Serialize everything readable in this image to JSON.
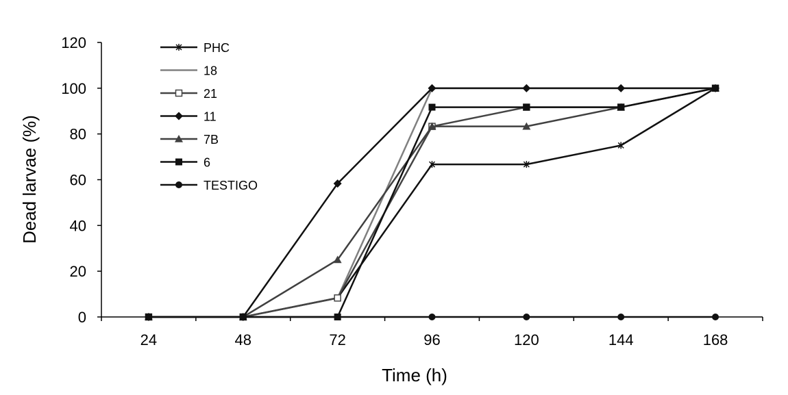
{
  "chart_data": {
    "type": "line",
    "xlabel": "Time (h)",
    "ylabel": "Dead larvae (%)",
    "x": [
      24,
      48,
      72,
      96,
      120,
      144,
      168
    ],
    "x_tick_labels": [
      "24",
      "48",
      "72",
      "96",
      "120",
      "144",
      "168"
    ],
    "ylim": [
      0,
      120
    ],
    "y_ticks": [
      0,
      20,
      40,
      60,
      80,
      100,
      120
    ],
    "y_tick_labels": [
      "0",
      "20",
      "40",
      "60",
      "80",
      "100",
      "120"
    ],
    "grid": false,
    "legend": {
      "placement": "top-left"
    },
    "series": [
      {
        "name": "PHC",
        "color": "#111111",
        "marker": "star",
        "values": [
          0,
          0,
          8.3,
          66.7,
          66.7,
          75,
          100
        ]
      },
      {
        "name": "18",
        "color": "#808080",
        "marker": "none",
        "values": [
          0,
          0,
          8.3,
          100,
          100,
          100,
          100
        ]
      },
      {
        "name": "21",
        "color": "#444444",
        "marker": "square-open",
        "values": [
          0,
          0,
          8.3,
          83.3,
          91.7,
          91.7,
          100
        ]
      },
      {
        "name": "11",
        "color": "#111111",
        "marker": "diamond",
        "values": [
          0,
          0,
          58.3,
          100,
          100,
          100,
          100
        ]
      },
      {
        "name": "7B",
        "color": "#404040",
        "marker": "triangle",
        "values": [
          0,
          0,
          25,
          83.3,
          83.3,
          91.7,
          100
        ]
      },
      {
        "name": "6",
        "color": "#111111",
        "marker": "square",
        "values": [
          0,
          0,
          0,
          91.7,
          91.7,
          91.7,
          100
        ]
      },
      {
        "name": "TESTIGO",
        "color": "#111111",
        "marker": "circle",
        "values": [
          0,
          0,
          0,
          0,
          0,
          0,
          0
        ]
      }
    ]
  }
}
